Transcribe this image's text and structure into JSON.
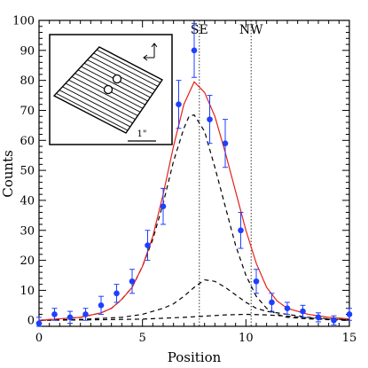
{
  "chart_data": {
    "type": "scatter",
    "xlabel": "Position",
    "ylabel": "Counts",
    "xlim": [
      0,
      15
    ],
    "ylim": [
      -2,
      100
    ],
    "x_ticks": [
      "0",
      "5",
      "10",
      "15"
    ],
    "y_ticks": [
      "0",
      "10",
      "20",
      "30",
      "40",
      "50",
      "60",
      "70",
      "80",
      "90",
      "100"
    ],
    "grid": false,
    "vertical_lines": [
      {
        "label": "SE",
        "x": 7.75
      },
      {
        "label": "NW",
        "x": 10.25
      }
    ],
    "observed": {
      "color": "#1f3fff",
      "x": [
        0,
        0.75,
        1.5,
        2.25,
        3.0,
        3.75,
        4.5,
        5.25,
        6.0,
        6.75,
        7.5,
        8.25,
        9.0,
        9.75,
        10.5,
        11.25,
        12.0,
        12.75,
        13.5,
        14.25,
        15.0
      ],
      "y": [
        -1,
        2,
        1,
        2,
        5,
        9,
        13,
        25,
        38,
        72,
        90,
        67,
        59,
        30,
        13,
        6,
        4,
        3,
        1,
        0,
        2
      ],
      "err": [
        2,
        2,
        2,
        2,
        3,
        3,
        4,
        5,
        6,
        8,
        9,
        8,
        8,
        6,
        4,
        3,
        2,
        2,
        1.5,
        1.5,
        2
      ]
    },
    "model_total": {
      "color": "#e8201a",
      "x": [
        0,
        1,
        2,
        3,
        3.5,
        4,
        4.5,
        5,
        5.5,
        6,
        6.5,
        7,
        7.5,
        8,
        8.5,
        9,
        9.5,
        10,
        10.5,
        11,
        11.5,
        12,
        13,
        14,
        15
      ],
      "y": [
        0,
        0.5,
        1,
        2.5,
        4,
        7,
        11,
        18,
        28,
        42,
        58,
        72,
        79.5,
        76,
        68,
        56,
        43,
        30,
        19,
        11,
        6.5,
        4,
        2,
        1,
        0.5
      ]
    },
    "model_components": [
      {
        "x": [
          0,
          1,
          2,
          3,
          3.5,
          4,
          4.5,
          5,
          5.5,
          6,
          6.5,
          7,
          7.25,
          7.5,
          8,
          8.5,
          9,
          9.5,
          10,
          10.5,
          11,
          11.5,
          12,
          13,
          14,
          15
        ],
        "y": [
          0,
          0.5,
          1,
          2.5,
          4,
          7,
          11,
          18,
          27,
          39,
          53,
          64,
          68,
          68.5,
          63,
          51,
          38,
          25,
          15,
          8,
          4,
          2,
          1,
          0.5,
          0.2,
          0
        ]
      },
      {
        "x": [
          0,
          2,
          4,
          5,
          6,
          6.5,
          7,
          7.5,
          8,
          8.5,
          9,
          9.5,
          10,
          10.5,
          11,
          12,
          13,
          14,
          15
        ],
        "y": [
          0,
          0.3,
          1,
          2,
          4,
          5.5,
          8,
          11,
          13.5,
          13,
          11,
          8.5,
          6,
          4,
          3,
          2,
          1,
          0.5,
          0.2
        ]
      },
      {
        "x": [
          0,
          3,
          5,
          6,
          7,
          8,
          9,
          10,
          11,
          12,
          13,
          14,
          15
        ],
        "y": [
          0,
          0.2,
          0.4,
          0.7,
          1,
          1.4,
          1.8,
          2,
          1.8,
          1.4,
          0.8,
          0.4,
          0.2
        ]
      }
    ],
    "inset": {
      "scale_label": "1\"",
      "stripe_count": 26
    }
  }
}
